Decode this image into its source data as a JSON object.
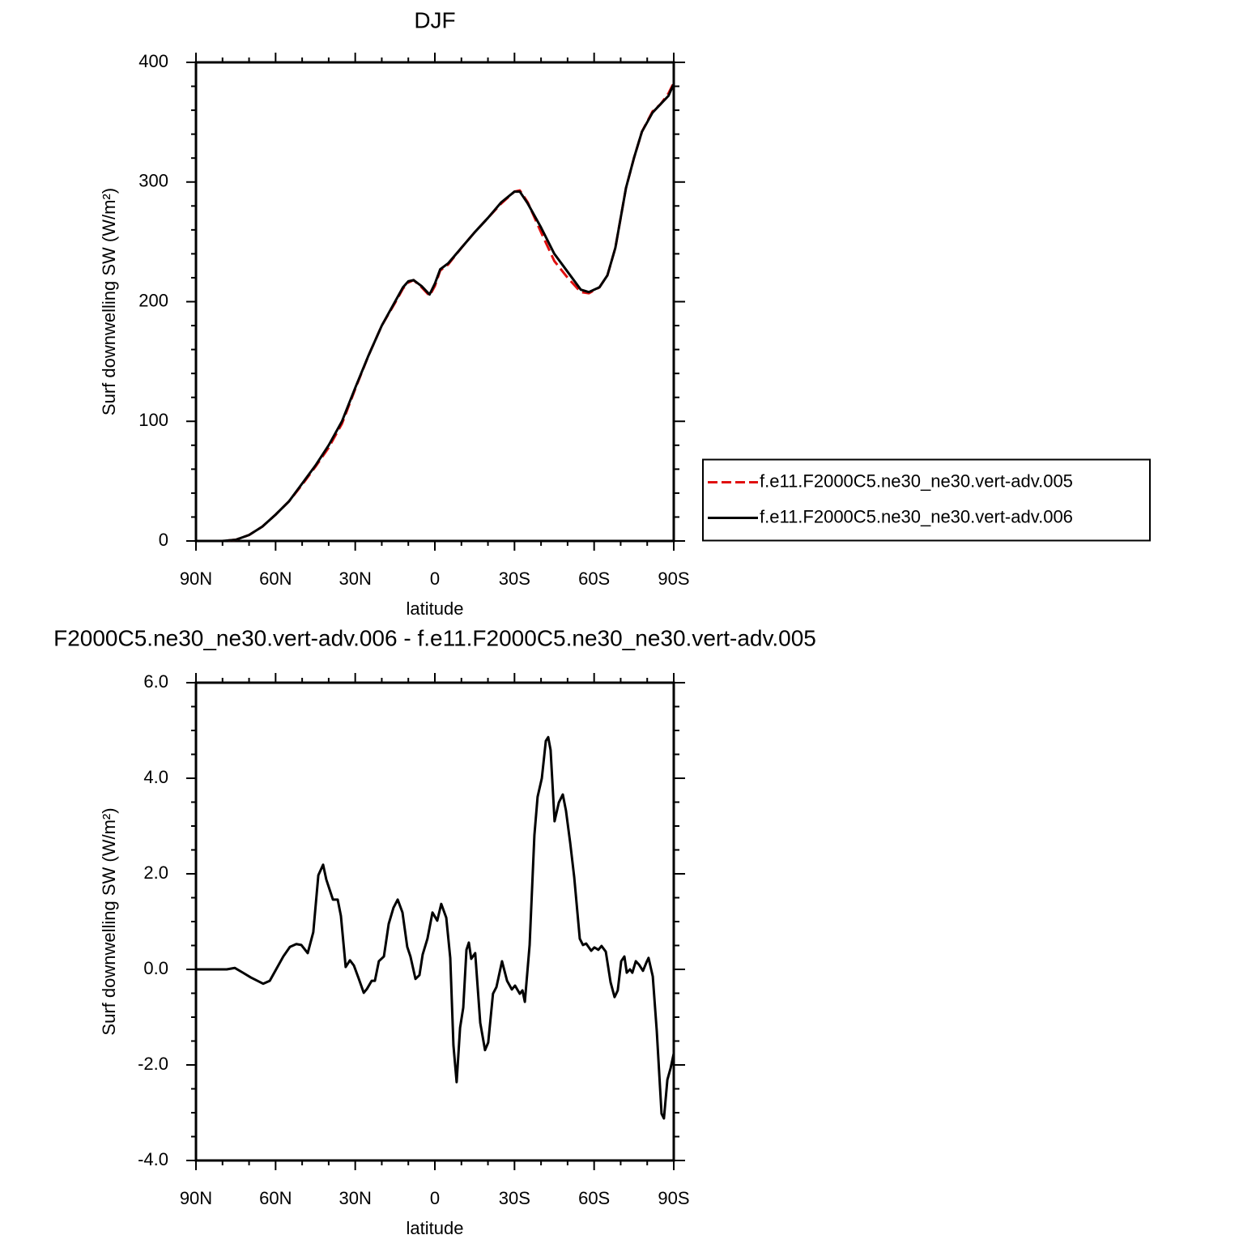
{
  "chart_data": [
    {
      "type": "line",
      "title": "DJF",
      "x_label": "latitude",
      "y_label": "Surf downwelling SW (W/m²)",
      "xlim": [
        90,
        -90
      ],
      "ylim": [
        0,
        400
      ],
      "xticks": [
        {
          "value": 90,
          "label": "90N"
        },
        {
          "value": 60,
          "label": "60N"
        },
        {
          "value": 30,
          "label": "30N"
        },
        0,
        {
          "value": -30,
          "label": "30S"
        },
        {
          "value": -60,
          "label": "60S"
        },
        {
          "value": -90,
          "label": "90S"
        }
      ],
      "yticks": [
        0,
        100,
        200,
        300,
        400
      ],
      "xminorticks": [
        80,
        70,
        50,
        40,
        20,
        10,
        -10,
        -20,
        -40,
        -50,
        -70,
        -80
      ],
      "yminorticks": [
        20,
        40,
        60,
        80,
        120,
        140,
        160,
        180,
        220,
        240,
        260,
        280,
        320,
        340,
        360,
        380
      ],
      "legend": "right",
      "x": [
        90,
        85,
        80,
        75,
        70,
        65,
        60,
        55,
        50,
        45,
        40,
        35,
        30,
        25,
        20,
        15,
        12,
        10,
        8,
        5,
        2,
        0,
        -2,
        -5,
        -10,
        -15,
        -20,
        -25,
        -30,
        -32,
        -35,
        -40,
        -45,
        -50,
        -55,
        -58,
        -62,
        -65,
        -68,
        -72,
        -75,
        -78,
        -82,
        -85,
        -88,
        -90
      ],
      "series": [
        {
          "name": "f.e11.F2000C5.ne30_ne30.vert-adv.005",
          "color": "#e01010",
          "dashed": true,
          "values": [
            0,
            0,
            0,
            1,
            5,
            12,
            22,
            33,
            47,
            62,
            78,
            98,
            127,
            155,
            180,
            199,
            211,
            216,
            218,
            212,
            205,
            213,
            226,
            231,
            245,
            258,
            270,
            282,
            292,
            293,
            283,
            258,
            234,
            220,
            208,
            207,
            212,
            222,
            245,
            295,
            320,
            342,
            359,
            365,
            374,
            383
          ]
        },
        {
          "name": "f.e11.F2000C5.ne30_ne30.vert-adv.006",
          "color": "#000000",
          "dashed": false,
          "values": [
            0,
            0,
            0,
            1,
            5,
            12,
            22,
            33,
            48,
            63,
            80,
            100,
            128,
            155,
            180,
            200,
            212,
            217,
            218,
            213,
            206,
            215,
            227,
            232,
            245,
            258,
            270,
            283,
            292,
            292,
            282,
            262,
            240,
            225,
            210,
            208,
            212,
            222,
            245,
            295,
            320,
            342,
            358,
            365,
            372,
            382
          ]
        }
      ]
    },
    {
      "type": "line",
      "title": "F2000C5.ne30_ne30.vert-adv.006 - f.e11.F2000C5.ne30_ne30.vert-adv.005",
      "x_label": "latitude",
      "y_label": "Surf downwelling SW (W/m²)",
      "xlim": [
        90,
        -90
      ],
      "ylim": [
        -4,
        6
      ],
      "xticks": [
        {
          "value": 90,
          "label": "90N"
        },
        {
          "value": 60,
          "label": "60N"
        },
        {
          "value": 30,
          "label": "30N"
        },
        0,
        {
          "value": -30,
          "label": "30S"
        },
        {
          "value": -60,
          "label": "60S"
        },
        {
          "value": -90,
          "label": "90S"
        }
      ],
      "yticks": [
        {
          "value": -4,
          "label": "-4.0"
        },
        {
          "value": -2,
          "label": "-2.0"
        },
        {
          "value": 0,
          "label": "0.0"
        },
        {
          "value": 2,
          "label": "2.0"
        },
        {
          "value": 4,
          "label": "4.0"
        },
        {
          "value": 6,
          "label": "6.0"
        }
      ],
      "xminorticks": [
        80,
        70,
        50,
        40,
        20,
        10,
        -10,
        -20,
        -40,
        -50,
        -70,
        -80
      ],
      "yminorticks": [
        5.5,
        5,
        4.5,
        3.5,
        3,
        2.5,
        1.5,
        1,
        0.5,
        -0.5,
        -1,
        -1.5,
        -2.5,
        -3,
        -3.5
      ],
      "color": "#000000",
      "x": [
        90,
        78.4,
        75.4,
        72.3,
        69.3,
        66.8,
        64.7,
        62.2,
        60.1,
        57.1,
        54.6,
        52.2,
        50.3,
        47.9,
        45.8,
        43.9,
        42.1,
        40.9,
        38.4,
        36.6,
        35.4,
        33.6,
        32.0,
        30.5,
        28.7,
        26.8,
        25.6,
        23.8,
        22.6,
        21.1,
        19.2,
        17.4,
        15.6,
        14.0,
        12.2,
        10.4,
        9.2,
        7.3,
        5.8,
        4.6,
        2.8,
        0.9,
        -0.9,
        -2.4,
        -4.3,
        -5.8,
        -7.0,
        -8.2,
        -9.5,
        -10.7,
        -11.9,
        -12.8,
        -13.7,
        -15.2,
        -17.1,
        -18.9,
        -20.1,
        -21.9,
        -23.2,
        -25.3,
        -27.2,
        -29.0,
        -30.2,
        -32.0,
        -33.0,
        -33.9,
        -35.7,
        -37.5,
        -38.7,
        -40.3,
        -41.8,
        -42.7,
        -43.6,
        -45.1,
        -46.7,
        -48.2,
        -49.4,
        -51.0,
        -52.5,
        -54.6,
        -55.8,
        -57.0,
        -58.9,
        -60.1,
        -61.6,
        -62.8,
        -64.4,
        -66.2,
        -67.7,
        -68.9,
        -70.2,
        -71.4,
        -72.3,
        -73.5,
        -74.4,
        -75.7,
        -76.9,
        -78.4,
        -79.9,
        -80.5,
        -82.1,
        -83.6,
        -85.4,
        -86.3,
        -87.6,
        -88.8,
        -90
      ],
      "values": [
        0,
        0,
        0.03,
        -0.07,
        -0.17,
        -0.24,
        -0.3,
        -0.24,
        -0.03,
        0.27,
        0.47,
        0.53,
        0.51,
        0.34,
        0.78,
        1.97,
        2.19,
        1.88,
        1.46,
        1.46,
        1.12,
        0.05,
        0.19,
        0.08,
        -0.19,
        -0.49,
        -0.41,
        -0.24,
        -0.24,
        0.17,
        0.27,
        0.95,
        1.29,
        1.46,
        1.19,
        0.47,
        0.27,
        -0.2,
        -0.12,
        0.31,
        0.64,
        1.19,
        1.02,
        1.37,
        1.08,
        0.24,
        -1.59,
        -2.36,
        -1.22,
        -0.8,
        0.41,
        0.56,
        0.22,
        0.34,
        -1.12,
        -1.69,
        -1.53,
        -0.51,
        -0.37,
        0.17,
        -0.24,
        -0.42,
        -0.34,
        -0.51,
        -0.44,
        -0.68,
        0.51,
        2.81,
        3.61,
        4.0,
        4.78,
        4.86,
        4.59,
        3.1,
        3.49,
        3.66,
        3.32,
        2.64,
        1.93,
        0.64,
        0.51,
        0.54,
        0.39,
        0.46,
        0.41,
        0.49,
        0.37,
        -0.27,
        -0.58,
        -0.44,
        0.17,
        0.27,
        -0.07,
        0,
        -0.07,
        0.17,
        0.1,
        -0.03,
        0.17,
        0.24,
        -0.15,
        -1.29,
        -3.02,
        -3.12,
        -2.31,
        -2.07,
        -1.76
      ]
    }
  ]
}
